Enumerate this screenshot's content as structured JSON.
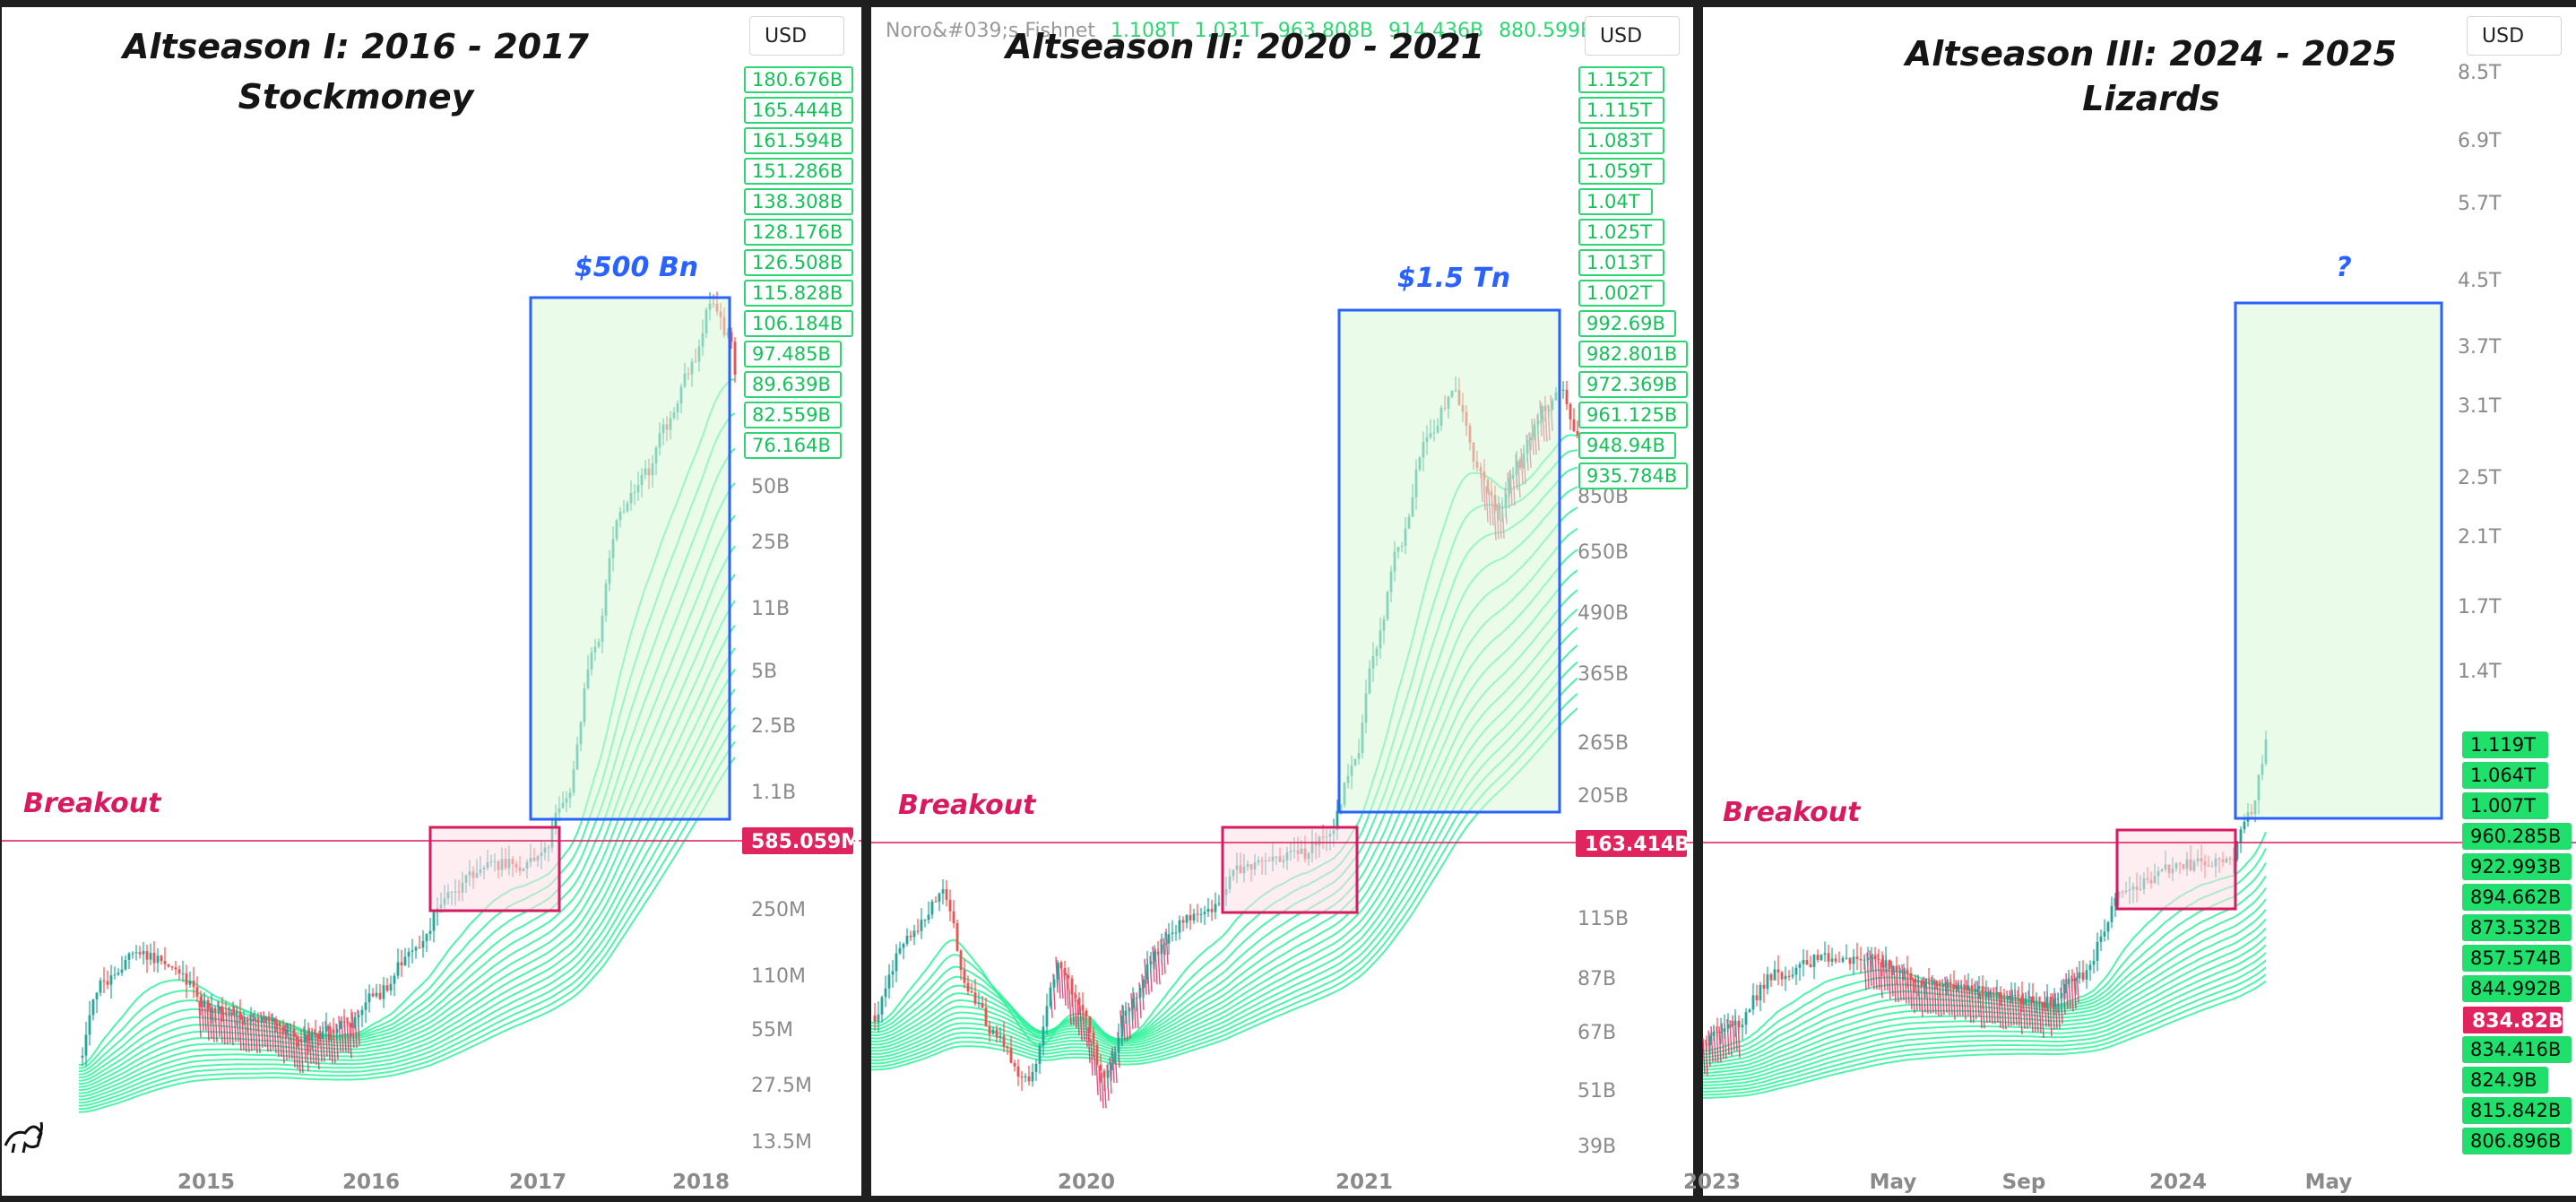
{
  "chart_data": [
    {
      "type": "line",
      "title": "Altseason I: 2016 - 2017",
      "subtitle": "Stockmoney",
      "currency": "USD",
      "x_axis_labels": [
        "2015",
        "2016",
        "2017",
        "2018"
      ],
      "y_axis_labels": [
        "1.1B",
        "2.5B",
        "5B",
        "11B",
        "25B",
        "50B",
        "250M",
        "110M",
        "55M",
        "27.5M",
        "13.5M"
      ],
      "y_scale": "log",
      "ribbon_labels": [
        "180.676B",
        "165.444B",
        "161.594B",
        "151.286B",
        "138.308B",
        "128.176B",
        "126.508B",
        "115.828B",
        "106.184B",
        "97.485B",
        "89.639B",
        "82.559B",
        "76.164B"
      ],
      "price_label": "585.059M",
      "breakout_label": "Breakout",
      "target_label": "$500 Bn",
      "colors": {
        "ribbon": "#2ef29a",
        "ribbon_down": "#e0245e",
        "target_box": "#2962ff",
        "breakout": "#d81b60"
      }
    },
    {
      "type": "line",
      "title": "Altseason II: 2020 - 2021",
      "currency": "USD",
      "indicator_name": "Noro&#039;s Fishnet",
      "indicator_values": [
        "1.108T",
        "1.031T",
        "963.808B",
        "914.436B",
        "880.599B..."
      ],
      "x_axis_labels": [
        "2020",
        "2021"
      ],
      "y_axis_labels": [
        "850B",
        "650B",
        "490B",
        "365B",
        "265B",
        "205B",
        "115B",
        "87B",
        "67B",
        "51B",
        "39B"
      ],
      "y_scale": "log",
      "ribbon_labels": [
        "1.152T",
        "1.115T",
        "1.083T",
        "1.059T",
        "1.04T",
        "1.025T",
        "1.013T",
        "1.002T",
        "992.69B",
        "982.801B",
        "972.369B",
        "961.125B",
        "948.94B",
        "935.784B"
      ],
      "price_label": "163.414B",
      "breakout_label": "Breakout",
      "target_label": "$1.5 Tn",
      "colors": {
        "ribbon": "#2ef29a",
        "ribbon_down": "#e0245e",
        "target_box": "#2962ff",
        "breakout": "#d81b60"
      }
    },
    {
      "type": "line",
      "title": "Altseason III: 2024 - 2025",
      "subtitle": "Lizards",
      "currency": "USD",
      "x_axis_labels": [
        "2023",
        "May",
        "Sep",
        "2024",
        "May"
      ],
      "y_axis_labels": [
        "8.5T",
        "6.9T",
        "5.7T",
        "4.5T",
        "3.7T",
        "3.1T",
        "2.5T",
        "2.1T",
        "1.7T",
        "1.4T"
      ],
      "y_scale": "log",
      "ribbon_labels": [
        "1.119T",
        "1.064T",
        "1.007T",
        "960.285B",
        "922.993B",
        "894.662B",
        "873.532B",
        "857.574B",
        "844.992B",
        "834.416B",
        "824.9B",
        "815.842B",
        "806.896B"
      ],
      "price_label": "834.82B",
      "breakout_label": "Breakout",
      "target_label": "?",
      "colors": {
        "ribbon": "#2ef29a",
        "ribbon_down": "#e0245e",
        "target_box": "#2962ff",
        "breakout": "#d81b60"
      }
    }
  ]
}
